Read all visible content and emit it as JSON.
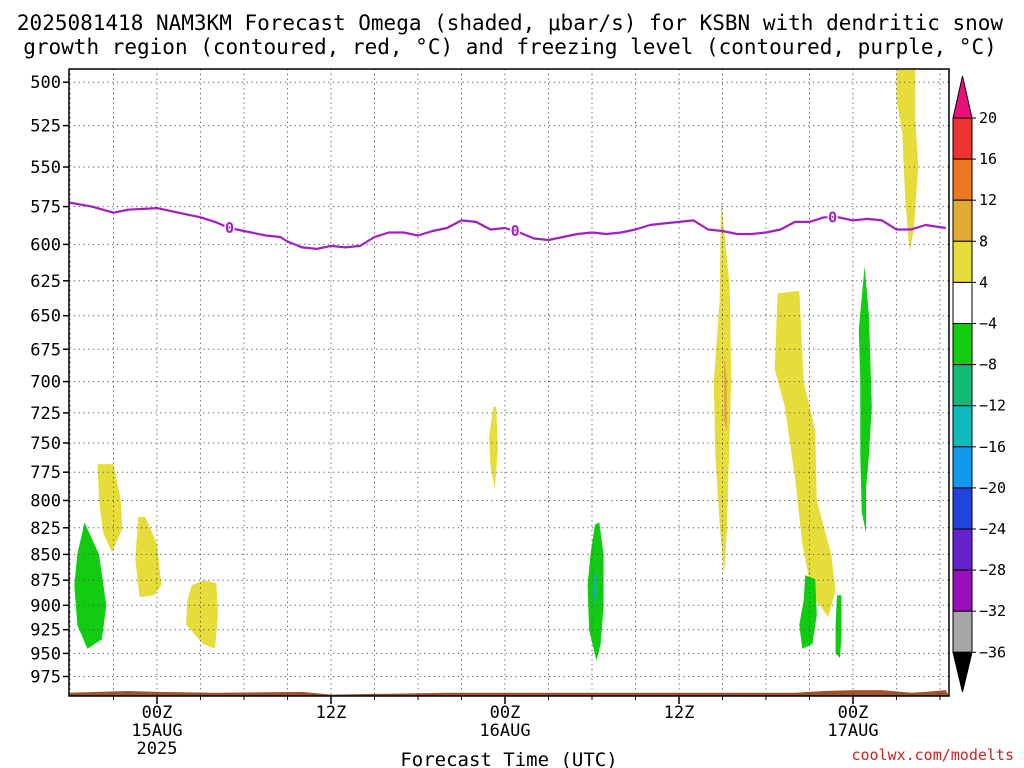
{
  "title_line1": "2025081418 NAM3KM Forecast Omega (shaded, μbar/s) for KSBN with dendritic snow",
  "title_line2": "growth region (contoured, red, °C) and freezing level (contoured, purple, °C)",
  "x_axis_title": "Forecast Time (UTC)",
  "credit": "coolwx.com/modelts",
  "chart_data": {
    "type": "time-height cross section",
    "title": "2025081418 NAM3KM Forecast Omega (shaded, μbar/s) for KSBN with dendritic snow growth region (contoured, red, °C) and freezing level (contoured, purple, °C)",
    "xlabel": "Forecast Time (UTC)",
    "ylabel": "",
    "x_range_hours": [
      -6.3,
      54.4
    ],
    "y_range_hPa": [
      493,
      1000
    ],
    "y_scale": "log-pressure",
    "grid": true,
    "x_ticks": [
      {
        "hour": 0,
        "label": "00Z",
        "sub": [
          "15AUG",
          "2025"
        ]
      },
      {
        "hour": 12,
        "label": "12Z",
        "sub": []
      },
      {
        "hour": 24,
        "label": "00Z",
        "sub": [
          "16AUG"
        ]
      },
      {
        "hour": 36,
        "label": "12Z",
        "sub": []
      },
      {
        "hour": 48,
        "label": "00Z",
        "sub": [
          "17AUG"
        ]
      }
    ],
    "y_ticks": [
      500,
      525,
      550,
      575,
      600,
      625,
      650,
      675,
      700,
      725,
      750,
      775,
      800,
      825,
      850,
      875,
      900,
      925,
      950,
      975
    ],
    "colorbar": {
      "unit": "μbar/s",
      "labels": [
        "20",
        "16",
        "12",
        "8",
        "4",
        "−4",
        "−8",
        "−12",
        "−16",
        "−20",
        "−24",
        "−28",
        "−32",
        "−36"
      ],
      "colors": [
        "#e8117a",
        "#ee3333",
        "#ee7722",
        "#e0aa33",
        "#e6dc3a",
        "#ffffff",
        "#11cc11",
        "#11bb77",
        "#11bbbb",
        "#1199ee",
        "#2244dd",
        "#6622cc",
        "#9911bb",
        "#a6a6a6",
        "#000000"
      ]
    },
    "freezing_level": {
      "contour_label": "0",
      "color": "#a020c0",
      "points": [
        [
          -6.3,
          572
        ],
        [
          -4.5,
          575
        ],
        [
          -3,
          579
        ],
        [
          -2,
          577
        ],
        [
          0,
          576
        ],
        [
          1,
          578
        ],
        [
          2,
          580
        ],
        [
          3,
          582
        ],
        [
          4,
          585
        ],
        [
          5,
          589
        ],
        [
          6,
          591
        ],
        [
          7.5,
          594
        ],
        [
          8.5,
          595
        ],
        [
          9,
          598
        ],
        [
          10,
          602
        ],
        [
          11,
          603
        ],
        [
          12,
          601
        ],
        [
          13,
          602
        ],
        [
          14,
          601
        ],
        [
          15,
          595
        ],
        [
          16,
          592
        ],
        [
          17,
          592
        ],
        [
          18,
          594
        ],
        [
          19,
          591
        ],
        [
          20,
          589
        ],
        [
          21,
          584
        ],
        [
          22,
          585
        ],
        [
          23,
          590
        ],
        [
          24,
          589
        ],
        [
          25,
          592
        ],
        [
          26,
          596
        ],
        [
          27,
          597
        ],
        [
          28,
          595
        ],
        [
          29,
          593
        ],
        [
          30,
          592
        ],
        [
          31,
          593
        ],
        [
          32,
          592
        ],
        [
          33,
          590
        ],
        [
          34,
          587
        ],
        [
          35,
          586
        ],
        [
          36,
          585
        ],
        [
          37,
          584
        ],
        [
          38,
          590
        ],
        [
          39,
          591
        ],
        [
          40,
          593
        ],
        [
          41,
          593
        ],
        [
          42,
          592
        ],
        [
          43,
          590
        ],
        [
          44,
          585
        ],
        [
          45,
          585
        ],
        [
          46,
          582
        ],
        [
          47,
          582
        ],
        [
          48,
          584
        ],
        [
          49,
          583
        ],
        [
          50,
          584
        ],
        [
          51,
          590
        ],
        [
          52,
          590
        ],
        [
          53,
          587
        ],
        [
          54.4,
          589
        ]
      ],
      "labels_at_hours": [
        5,
        24.7,
        46.6
      ]
    },
    "omega_regions": [
      {
        "sign": "rising",
        "range": "-8 to -4",
        "color": "#11cc11",
        "points": [
          [
            -5.5,
            850
          ],
          [
            -5,
            820
          ],
          [
            -4,
            850
          ],
          [
            -3.5,
            900
          ],
          [
            -3.8,
            935
          ],
          [
            -4.8,
            945
          ],
          [
            -5.5,
            920
          ],
          [
            -5.7,
            880
          ]
        ]
      },
      {
        "sign": "sinking",
        "range": "4 to 8",
        "color": "#e6dc3a",
        "points": [
          [
            -4.1,
            768
          ],
          [
            -3,
            768
          ],
          [
            -2.5,
            800
          ],
          [
            -2.4,
            826
          ],
          [
            -3.1,
            848
          ],
          [
            -3.7,
            830
          ],
          [
            -4,
            800
          ]
        ]
      },
      {
        "sign": "sinking",
        "range": "4 to 8",
        "color": "#e6dc3a",
        "points": [
          [
            -1.3,
            815
          ],
          [
            -0.8,
            815
          ],
          [
            0,
            840
          ],
          [
            0.3,
            880
          ],
          [
            -0.2,
            890
          ],
          [
            -1.2,
            892
          ],
          [
            -1.5,
            855
          ]
        ]
      },
      {
        "sign": "sinking",
        "range": "4 to 8",
        "color": "#e6dc3a",
        "points": [
          [
            2.4,
            880
          ],
          [
            3.2,
            875
          ],
          [
            4.1,
            878
          ],
          [
            4.2,
            910
          ],
          [
            4,
            945
          ],
          [
            3.2,
            940
          ],
          [
            2,
            920
          ],
          [
            2.1,
            895
          ]
        ]
      },
      {
        "sign": "sinking",
        "range": "4 to 8",
        "color": "#e6dc3a",
        "points": [
          [
            23.2,
            720
          ],
          [
            23.4,
            720
          ],
          [
            23.5,
            755
          ],
          [
            23.3,
            790
          ],
          [
            23,
            770
          ],
          [
            22.9,
            745
          ]
        ]
      },
      {
        "sign": "rising",
        "range": "-8 to -4",
        "color": "#11cc11",
        "points": [
          [
            30.2,
            822
          ],
          [
            30.5,
            820
          ],
          [
            30.8,
            850
          ],
          [
            30.8,
            900
          ],
          [
            30.6,
            940
          ],
          [
            30.3,
            958
          ],
          [
            29.8,
            925
          ],
          [
            29.7,
            880
          ],
          [
            29.9,
            850
          ]
        ]
      },
      {
        "sign": "rising",
        "range": "-12 to -8",
        "color": "#11bb77",
        "points": [
          [
            30.1,
            870
          ],
          [
            30.3,
            866
          ],
          [
            30.4,
            885
          ],
          [
            30.2,
            905
          ],
          [
            30,
            888
          ]
        ]
      },
      {
        "sign": "sinking",
        "range": "4 to 8",
        "color": "#e6dc3a",
        "points": [
          [
            38.9,
            570
          ],
          [
            39.5,
            630
          ],
          [
            39.6,
            700
          ],
          [
            39.4,
            780
          ],
          [
            39.3,
            830
          ],
          [
            39.1,
            870
          ],
          [
            38.8,
            820
          ],
          [
            38.5,
            760
          ],
          [
            38.4,
            700
          ],
          [
            38.8,
            640
          ]
        ]
      },
      {
        "sign": "sinking",
        "range": "8 to 12",
        "color": "#e0aa33",
        "points": [
          [
            39.1,
            680
          ],
          [
            39.3,
            700
          ],
          [
            39.3,
            740
          ],
          [
            39.1,
            730
          ]
        ]
      },
      {
        "sign": "sinking",
        "range": "4 to 8",
        "color": "#e6dc3a",
        "points": [
          [
            42.8,
            634
          ],
          [
            44.3,
            632
          ],
          [
            44.6,
            700
          ],
          [
            45.4,
            740
          ],
          [
            45.5,
            800
          ],
          [
            46.5,
            850
          ],
          [
            46.8,
            885
          ],
          [
            46.3,
            912
          ],
          [
            45.2,
            890
          ],
          [
            44.5,
            840
          ],
          [
            44,
            780
          ],
          [
            43.3,
            720
          ],
          [
            42.6,
            690
          ]
        ]
      },
      {
        "sign": "rising",
        "range": "-8 to -4",
        "color": "#11cc11",
        "points": [
          [
            44.7,
            870
          ],
          [
            45.4,
            874
          ],
          [
            45.5,
            910
          ],
          [
            45.2,
            940
          ],
          [
            44.5,
            945
          ],
          [
            44.3,
            920
          ],
          [
            44.6,
            895
          ]
        ]
      },
      {
        "sign": "rising",
        "range": "-8 to -4",
        "color": "#11cc11",
        "points": [
          [
            48.8,
            615
          ],
          [
            49.1,
            650
          ],
          [
            49.3,
            720
          ],
          [
            49.1,
            760
          ],
          [
            48.9,
            790
          ],
          [
            48.9,
            830
          ],
          [
            48.6,
            810
          ],
          [
            48.5,
            760
          ],
          [
            48.5,
            700
          ],
          [
            48.4,
            660
          ]
        ]
      },
      {
        "sign": "rising",
        "range": "-8 to -4",
        "color": "#11cc11",
        "points": [
          [
            46.9,
            890
          ],
          [
            47.2,
            890
          ],
          [
            47.2,
            930
          ],
          [
            47.1,
            955
          ],
          [
            46.8,
            950
          ],
          [
            46.8,
            920
          ]
        ]
      },
      {
        "sign": "sinking",
        "range": "4 to 8",
        "color": "#e6dc3a",
        "points": [
          [
            51,
            493
          ],
          [
            52.3,
            493
          ],
          [
            52.3,
            520
          ],
          [
            52.5,
            550
          ],
          [
            52.2,
            590
          ],
          [
            51.9,
            605
          ],
          [
            51.6,
            570
          ],
          [
            51.4,
            530
          ],
          [
            51,
            510
          ]
        ]
      }
    ],
    "surface_terrain": {
      "color": "#a0522d",
      "points": [
        [
          -6.3,
          993
        ],
        [
          -4,
          992
        ],
        [
          -2,
          991
        ],
        [
          0,
          992
        ],
        [
          4,
          993
        ],
        [
          10,
          992
        ],
        [
          12,
          995
        ],
        [
          16,
          994
        ],
        [
          20,
          993
        ],
        [
          24,
          993
        ],
        [
          30,
          993
        ],
        [
          36,
          993
        ],
        [
          40,
          993
        ],
        [
          44,
          993
        ],
        [
          46,
          991
        ],
        [
          48,
          990
        ],
        [
          50,
          990
        ],
        [
          52,
          993
        ],
        [
          53,
          992
        ],
        [
          54.4,
          990
        ]
      ]
    }
  }
}
